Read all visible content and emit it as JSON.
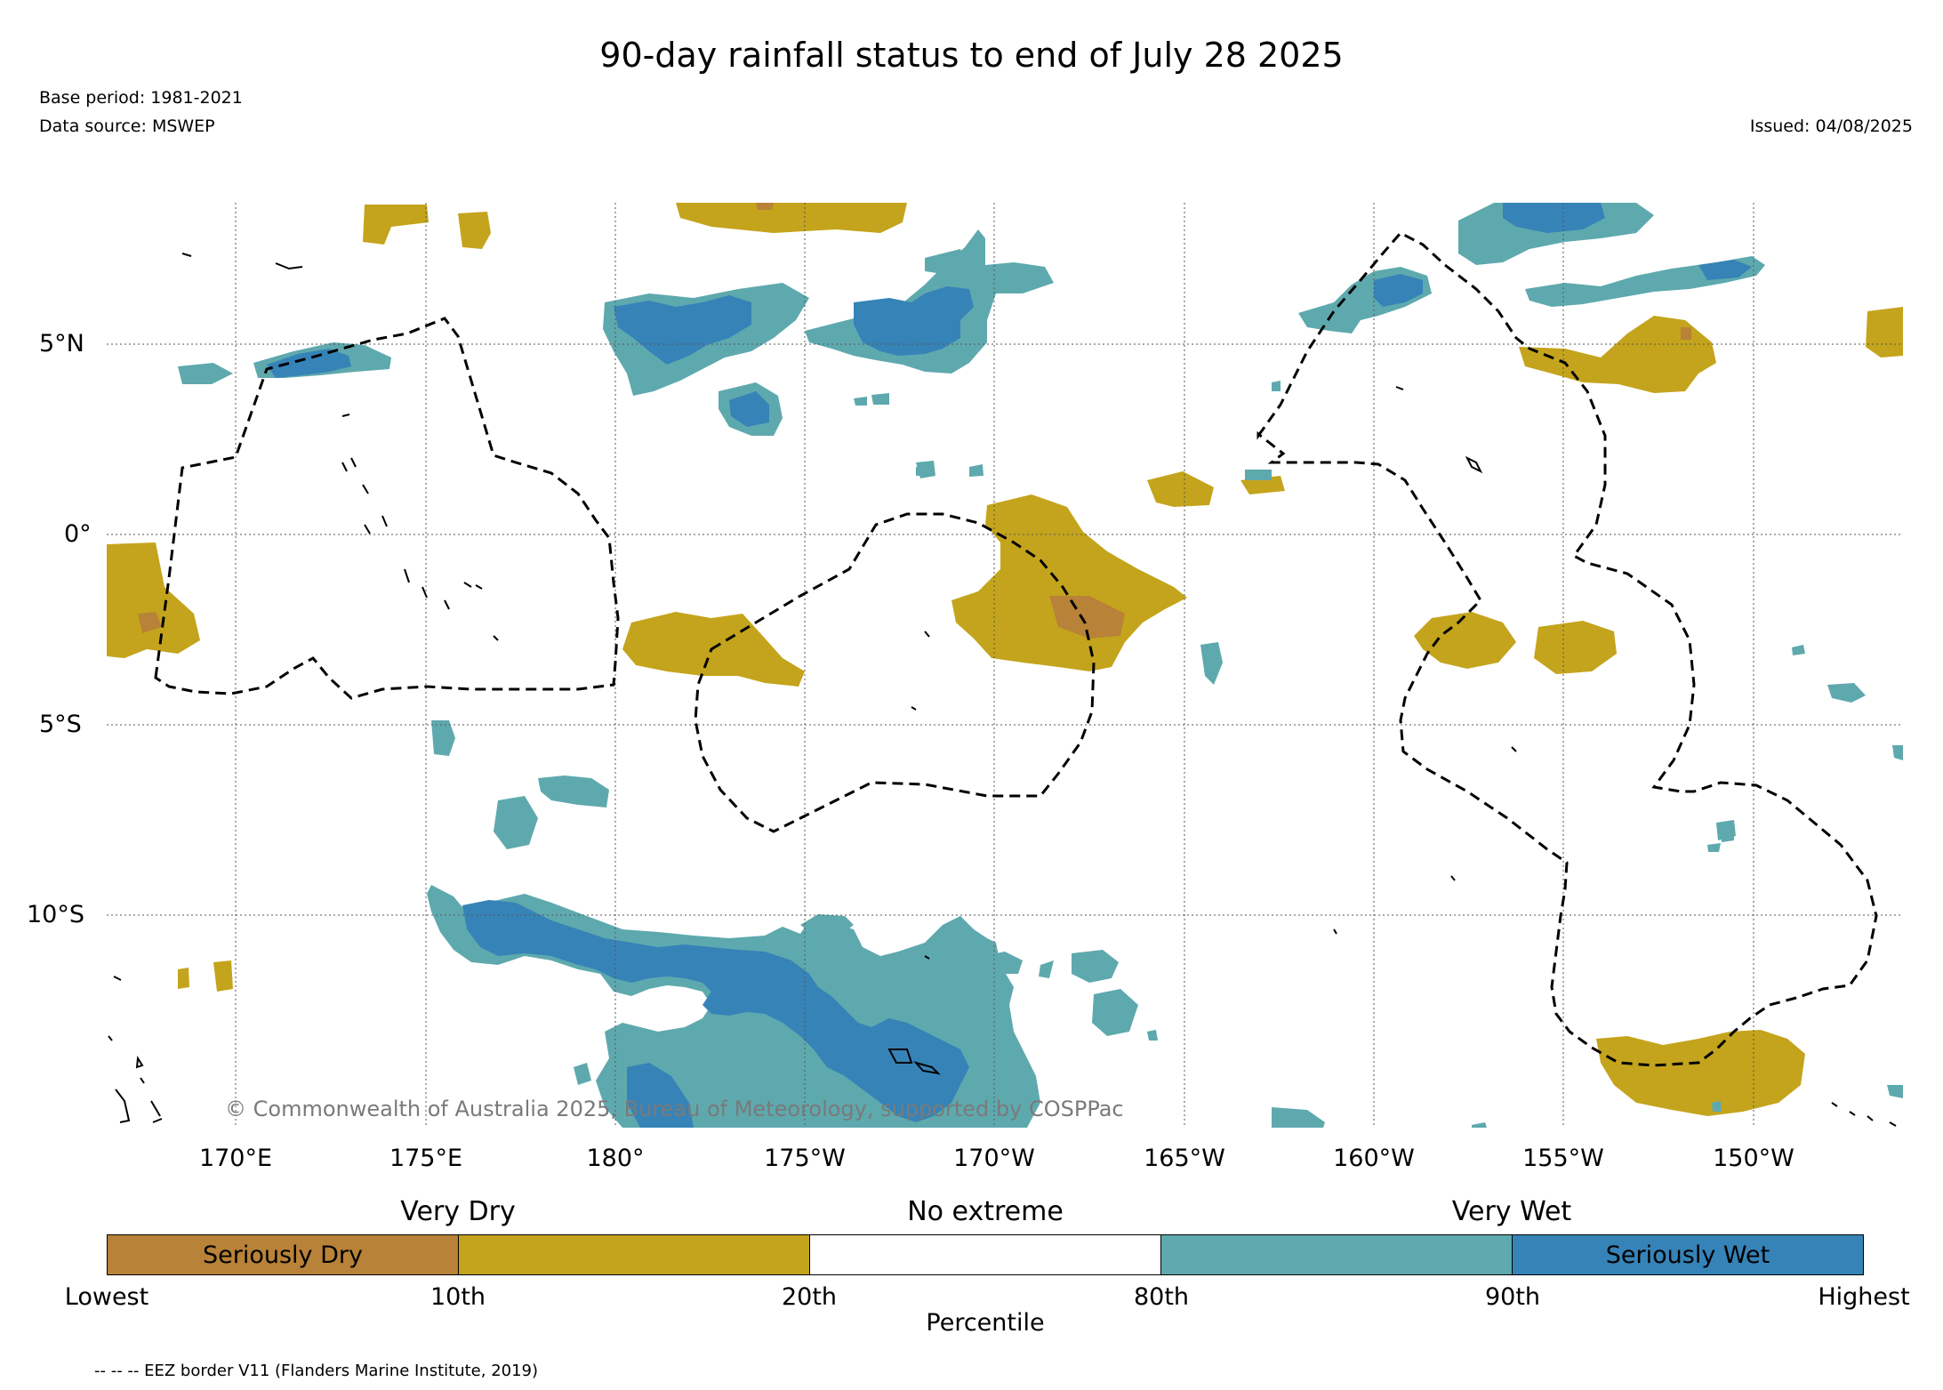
{
  "title": "90-day rainfall status to end of July 28 2025",
  "base_period": "Base period: 1981-2021",
  "data_source": "Data source: MSWEP",
  "issued": "Issued: 04/08/2025",
  "copyright": "© Commonwealth of Australia 2025, Bureau of Meteorology, supported by COSPPac",
  "lat_labels": [
    "5°N",
    "0°",
    "5°S",
    "10°S"
  ],
  "lon_labels": [
    "170°E",
    "175°E",
    "180°",
    "175°W",
    "170°W",
    "165°W",
    "160°W",
    "155°W",
    "150°W"
  ],
  "colorbar": {
    "top_labels": [
      "Very Dry",
      "No extreme",
      "Very Wet"
    ],
    "segments": [
      {
        "label": "Seriously Dry",
        "color": "#b88238"
      },
      {
        "label": "",
        "color": "#c4a41c"
      },
      {
        "label": "",
        "color": "#ffffff"
      },
      {
        "label": "",
        "color": "#5ea9ae"
      },
      {
        "label": "Seriously Wet",
        "color": "#3683b8"
      }
    ],
    "tick_labels": [
      "Lowest",
      "10th",
      "20th",
      "80th",
      "90th",
      "Highest"
    ],
    "axis_label": "Percentile"
  },
  "legend_note": "-- -- -- EEZ border V11 (Flanders Marine Institute, 2019)",
  "colors": {
    "seriously_dry": "#b88238",
    "very_dry": "#c4a41c",
    "very_wet": "#5ea9ae",
    "seriously_wet": "#3683b8"
  }
}
